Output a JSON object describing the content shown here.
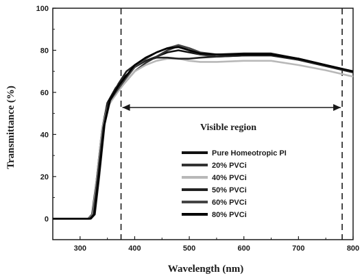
{
  "chart_data": {
    "type": "line",
    "xlabel": "Wavelength (nm)",
    "ylabel": "Transmittance (%)",
    "xlim": [
      250,
      800
    ],
    "ylim": [
      -10,
      100
    ],
    "xticks": [
      300,
      400,
      500,
      600,
      700,
      800
    ],
    "yticks": [
      0,
      20,
      40,
      60,
      80,
      100
    ],
    "grid": false,
    "legend_position": "lower-center",
    "annotation": {
      "text": "Visible region",
      "x_start": 375,
      "x_end": 780
    },
    "series": [
      {
        "name": "Pure Homeotropic PI",
        "color": "#111111",
        "points": [
          [
            250,
            0
          ],
          [
            300,
            0
          ],
          [
            315,
            0
          ],
          [
            322,
            2
          ],
          [
            330,
            18
          ],
          [
            340,
            42
          ],
          [
            350,
            55
          ],
          [
            365,
            62
          ],
          [
            380,
            67
          ],
          [
            400,
            72
          ],
          [
            420,
            75
          ],
          [
            440,
            77
          ],
          [
            460,
            79
          ],
          [
            480,
            80
          ],
          [
            500,
            79
          ],
          [
            520,
            78
          ],
          [
            550,
            78
          ],
          [
            600,
            78.5
          ],
          [
            650,
            78.5
          ],
          [
            700,
            76
          ],
          [
            750,
            73
          ],
          [
            800,
            70
          ]
        ]
      },
      {
        "name": "20% PVCi",
        "color": "#333333",
        "points": [
          [
            250,
            0
          ],
          [
            300,
            0
          ],
          [
            318,
            0
          ],
          [
            325,
            2
          ],
          [
            333,
            18
          ],
          [
            342,
            42
          ],
          [
            352,
            54
          ],
          [
            368,
            60
          ],
          [
            380,
            64
          ],
          [
            400,
            70
          ],
          [
            420,
            74
          ],
          [
            440,
            77
          ],
          [
            460,
            80
          ],
          [
            480,
            82
          ],
          [
            500,
            80
          ],
          [
            520,
            78
          ],
          [
            550,
            77
          ],
          [
            600,
            77.5
          ],
          [
            650,
            78
          ],
          [
            700,
            75.5
          ],
          [
            750,
            72.5
          ],
          [
            800,
            69.5
          ]
        ]
      },
      {
        "name": "40% PVCi",
        "color": "#b8b8b8",
        "points": [
          [
            250,
            0
          ],
          [
            300,
            0
          ],
          [
            316,
            0
          ],
          [
            323,
            2
          ],
          [
            331,
            20
          ],
          [
            340,
            42
          ],
          [
            350,
            53
          ],
          [
            365,
            59
          ],
          [
            380,
            64
          ],
          [
            400,
            70
          ],
          [
            420,
            73
          ],
          [
            440,
            75
          ],
          [
            460,
            76
          ],
          [
            480,
            76
          ],
          [
            500,
            75
          ],
          [
            520,
            74.5
          ],
          [
            550,
            74.5
          ],
          [
            600,
            75
          ],
          [
            650,
            75
          ],
          [
            700,
            73
          ],
          [
            750,
            70.5
          ],
          [
            800,
            67.5
          ]
        ]
      },
      {
        "name": "50% PVCi",
        "color": "#222222",
        "points": [
          [
            250,
            0
          ],
          [
            300,
            0
          ],
          [
            320,
            0
          ],
          [
            327,
            2
          ],
          [
            335,
            20
          ],
          [
            345,
            45
          ],
          [
            355,
            56
          ],
          [
            370,
            64
          ],
          [
            385,
            70
          ],
          [
            400,
            73
          ],
          [
            420,
            75
          ],
          [
            440,
            76.5
          ],
          [
            460,
            76.5
          ],
          [
            480,
            76
          ],
          [
            500,
            76
          ],
          [
            520,
            76.5
          ],
          [
            550,
            77
          ],
          [
            600,
            77.5
          ],
          [
            650,
            77.5
          ],
          [
            700,
            75.5
          ],
          [
            750,
            72.5
          ],
          [
            800,
            69.5
          ]
        ]
      },
      {
        "name": "60% PVCi",
        "color": "#444444",
        "points": [
          [
            250,
            0
          ],
          [
            300,
            0
          ],
          [
            317,
            0
          ],
          [
            324,
            2
          ],
          [
            332,
            20
          ],
          [
            342,
            43
          ],
          [
            352,
            55
          ],
          [
            368,
            61
          ],
          [
            382,
            66
          ],
          [
            400,
            72
          ],
          [
            420,
            76
          ],
          [
            440,
            79
          ],
          [
            460,
            81
          ],
          [
            480,
            82.5
          ],
          [
            500,
            81
          ],
          [
            520,
            79
          ],
          [
            550,
            78
          ],
          [
            600,
            78
          ],
          [
            650,
            78
          ],
          [
            700,
            76
          ],
          [
            750,
            73
          ],
          [
            800,
            70
          ]
        ]
      },
      {
        "name": "80% PVCi",
        "color": "#000000",
        "points": [
          [
            250,
            0
          ],
          [
            300,
            0
          ],
          [
            319,
            0
          ],
          [
            326,
            2
          ],
          [
            334,
            20
          ],
          [
            344,
            44
          ],
          [
            354,
            56
          ],
          [
            370,
            63
          ],
          [
            385,
            68
          ],
          [
            400,
            73
          ],
          [
            420,
            76.5
          ],
          [
            440,
            79
          ],
          [
            460,
            81
          ],
          [
            480,
            81.5
          ],
          [
            500,
            80
          ],
          [
            520,
            78.5
          ],
          [
            550,
            78
          ],
          [
            600,
            78
          ],
          [
            650,
            78
          ],
          [
            700,
            76
          ],
          [
            750,
            73
          ],
          [
            800,
            70
          ]
        ]
      }
    ]
  }
}
